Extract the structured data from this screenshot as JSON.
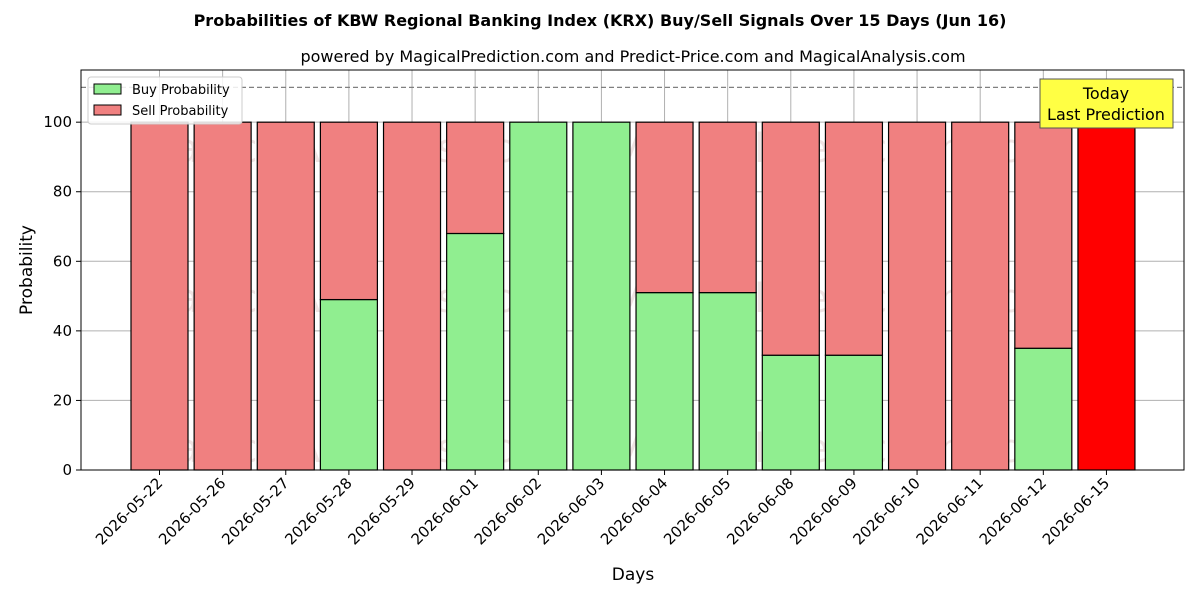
{
  "chart_data": {
    "type": "bar",
    "stacked": true,
    "title": "Probabilities of KBW Regional Banking Index (KRX) Buy/Sell Signals Over 15 Days (Jun 16)",
    "subtitle": "powered by MagicalPrediction.com and Predict-Price.com and MagicalAnalysis.com",
    "xlabel": "Days",
    "ylabel": "Probability",
    "ylim": [
      0,
      115
    ],
    "yticks": [
      0,
      20,
      40,
      60,
      80,
      100
    ],
    "grid": true,
    "legend_position": "top-left",
    "categories": [
      "2026-05-22",
      "2026-05-26",
      "2026-05-27",
      "2026-05-28",
      "2026-05-29",
      "2026-06-01",
      "2026-06-02",
      "2026-06-03",
      "2026-06-04",
      "2026-06-05",
      "2026-06-08",
      "2026-06-09",
      "2026-06-10",
      "2026-06-11",
      "2026-06-12",
      "2026-06-15"
    ],
    "series": [
      {
        "name": "Buy Probability",
        "color": "#90ee90",
        "values": [
          0,
          0,
          0,
          49,
          0,
          68,
          100,
          100,
          51,
          51,
          33,
          33,
          0,
          0,
          35,
          0
        ]
      },
      {
        "name": "Sell Probability",
        "color": "#f08080",
        "values": [
          100,
          100,
          100,
          51,
          100,
          32,
          0,
          0,
          49,
          49,
          67,
          67,
          100,
          100,
          65,
          100
        ]
      }
    ],
    "highlight": {
      "index": 15,
      "color": "#ff0000"
    },
    "reference_line": {
      "y": 110,
      "style": "dashed",
      "color": "#808080"
    },
    "annotation": {
      "lines": [
        "Today",
        "Last Prediction"
      ],
      "background": "#ffff44"
    },
    "watermarks": [
      "MagicalAnalysis.com",
      "MagicalPrediction.com"
    ]
  }
}
